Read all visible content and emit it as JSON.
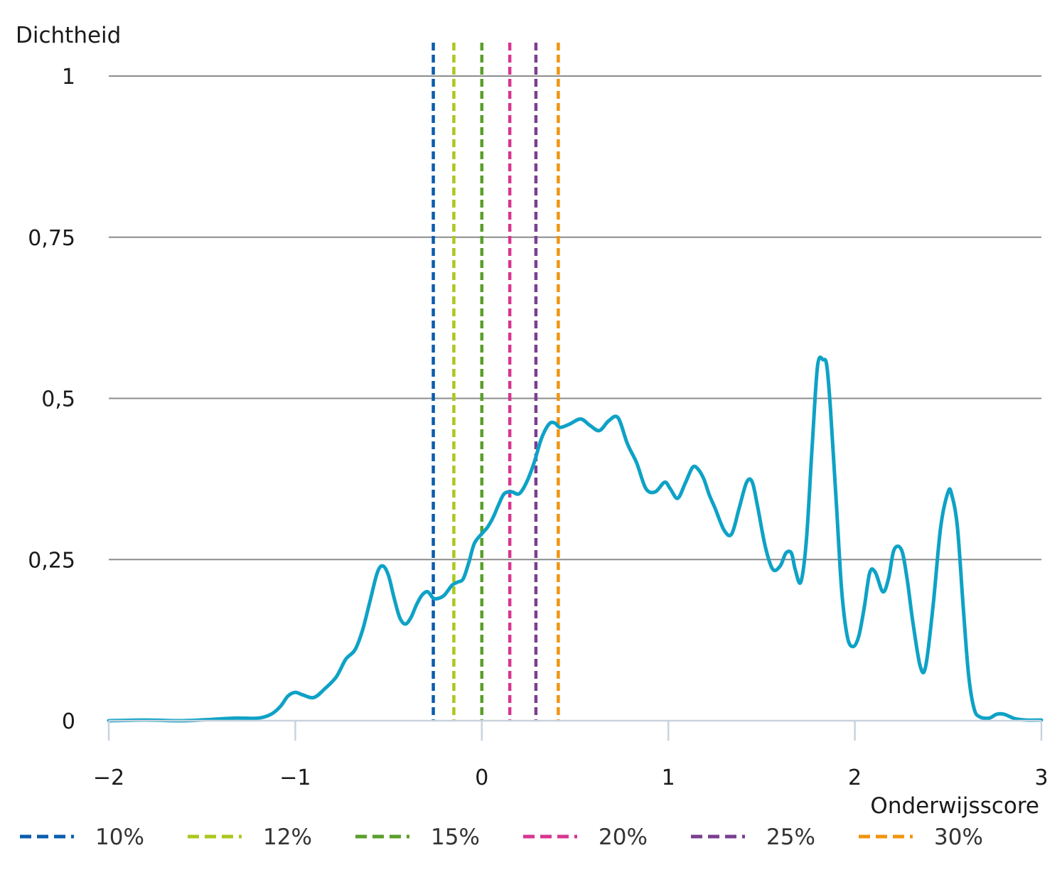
{
  "chart_data": {
    "type": "line",
    "ylabel": "Dichtheid",
    "xlabel": "Onderwijsscore",
    "xlim": [
      -2,
      3
    ],
    "ylim": [
      0,
      1
    ],
    "xticks": [
      {
        "value": -2,
        "label": "−2"
      },
      {
        "value": -1,
        "label": "−1"
      },
      {
        "value": 0,
        "label": "0"
      },
      {
        "value": 1,
        "label": "1"
      },
      {
        "value": 2,
        "label": "2"
      },
      {
        "value": 3,
        "label": "3"
      }
    ],
    "yticks": [
      {
        "value": 0,
        "label": "0"
      },
      {
        "value": 0.25,
        "label": "0,25"
      },
      {
        "value": 0.5,
        "label": "0,5"
      },
      {
        "value": 0.75,
        "label": "0,75"
      },
      {
        "value": 1,
        "label": "1"
      }
    ],
    "grid": true,
    "legend_position": "bottom",
    "density_series": {
      "color": "#0ea2c6",
      "x": [
        -2.0,
        -1.8,
        -1.6,
        -1.45,
        -1.32,
        -1.2,
        -1.13,
        -1.08,
        -1.04,
        -1.0,
        -0.96,
        -0.9,
        -0.84,
        -0.78,
        -0.73,
        -0.68,
        -0.64,
        -0.6,
        -0.56,
        -0.53,
        -0.5,
        -0.47,
        -0.44,
        -0.41,
        -0.38,
        -0.35,
        -0.32,
        -0.29,
        -0.26,
        -0.23,
        -0.2,
        -0.16,
        -0.13,
        -0.1,
        -0.07,
        -0.04,
        0.0,
        0.03,
        0.06,
        0.09,
        0.12,
        0.16,
        0.2,
        0.24,
        0.28,
        0.32,
        0.36,
        0.39,
        0.42,
        0.47,
        0.53,
        0.58,
        0.63,
        0.68,
        0.73,
        0.78,
        0.83,
        0.88,
        0.93,
        0.98,
        1.01,
        1.05,
        1.09,
        1.13,
        1.16,
        1.19,
        1.22,
        1.25,
        1.3,
        1.34,
        1.38,
        1.42,
        1.45,
        1.48,
        1.52,
        1.56,
        1.6,
        1.63,
        1.66,
        1.68,
        1.71,
        1.74,
        1.77,
        1.8,
        1.83,
        1.85,
        1.87,
        1.9,
        1.93,
        1.96,
        1.99,
        2.02,
        2.05,
        2.08,
        2.11,
        2.15,
        2.18,
        2.21,
        2.25,
        2.28,
        2.31,
        2.35,
        2.38,
        2.42,
        2.46,
        2.5,
        2.52,
        2.55,
        2.58,
        2.61,
        2.64,
        2.67,
        2.72,
        2.76,
        2.8,
        2.86,
        2.92,
        3.0
      ],
      "y": [
        0.0,
        0.001,
        0.0,
        0.002,
        0.004,
        0.004,
        0.01,
        0.022,
        0.038,
        0.044,
        0.04,
        0.036,
        0.05,
        0.068,
        0.095,
        0.11,
        0.14,
        0.185,
        0.23,
        0.24,
        0.225,
        0.19,
        0.16,
        0.15,
        0.16,
        0.18,
        0.195,
        0.2,
        0.19,
        0.19,
        0.195,
        0.21,
        0.215,
        0.22,
        0.245,
        0.275,
        0.29,
        0.3,
        0.315,
        0.335,
        0.352,
        0.355,
        0.352,
        0.37,
        0.4,
        0.438,
        0.46,
        0.462,
        0.455,
        0.46,
        0.468,
        0.458,
        0.45,
        0.465,
        0.47,
        0.43,
        0.4,
        0.36,
        0.355,
        0.37,
        0.36,
        0.345,
        0.368,
        0.393,
        0.39,
        0.375,
        0.35,
        0.33,
        0.295,
        0.29,
        0.33,
        0.37,
        0.37,
        0.33,
        0.27,
        0.235,
        0.24,
        0.26,
        0.26,
        0.235,
        0.215,
        0.28,
        0.42,
        0.55,
        0.56,
        0.55,
        0.48,
        0.34,
        0.2,
        0.13,
        0.115,
        0.13,
        0.175,
        0.23,
        0.23,
        0.2,
        0.22,
        0.265,
        0.265,
        0.22,
        0.155,
        0.085,
        0.085,
        0.18,
        0.3,
        0.355,
        0.35,
        0.3,
        0.18,
        0.07,
        0.018,
        0.006,
        0.004,
        0.01,
        0.01,
        0.003,
        0.001,
        0.001
      ]
    },
    "threshold_series": [
      {
        "name": "10%",
        "x": -0.26,
        "color": "#0a5cad"
      },
      {
        "name": "12%",
        "x": -0.15,
        "color": "#aac81e"
      },
      {
        "name": "15%",
        "x": 0.0,
        "color": "#5a9e2a"
      },
      {
        "name": "20%",
        "x": 0.15,
        "color": "#d8358f"
      },
      {
        "name": "25%",
        "x": 0.29,
        "color": "#7a3f8f"
      },
      {
        "name": "30%",
        "x": 0.41,
        "color": "#f0950f"
      }
    ]
  }
}
